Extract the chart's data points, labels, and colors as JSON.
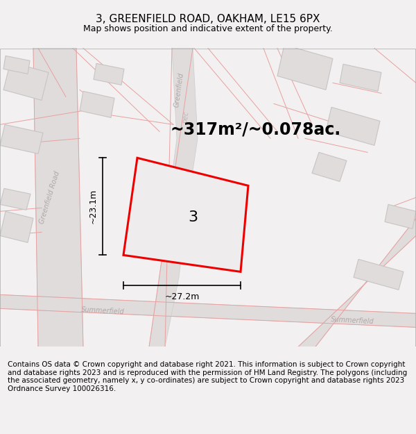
{
  "title_line1": "3, GREENFIELD ROAD, OAKHAM, LE15 6PX",
  "title_line2": "Map shows position and indicative extent of the property.",
  "area_text": "~317m²/~0.078ac.",
  "dim_height": "~23.1m",
  "dim_width": "~27.2m",
  "plot_number": "3",
  "footer_text": "Contains OS data © Crown copyright and database right 2021. This information is subject to Crown copyright and database rights 2023 and is reproduced with the permission of HM Land Registry. The polygons (including the associated geometry, namely x, y co-ordinates) are subject to Crown copyright and database rights 2023 Ordnance Survey 100026316.",
  "bg_color": "#f2f0f0",
  "map_bg": "#f2f0f0",
  "road_fill": "#e0dcdc",
  "road_edge": "#cccccc",
  "bldg_fill": "#e0dcdc",
  "bldg_edge": "#c8c4c4",
  "plot_fill": "#eeecec",
  "plot_edge": "#ee0000",
  "pink_line": "#e8a0a0",
  "dim_color": "#000000",
  "road_label_color": "#b0a8a8",
  "title_fontsize": 11,
  "subtitle_fontsize": 9,
  "area_fontsize": 17,
  "footer_fontsize": 7.5,
  "plot_label_fontsize": 16,
  "dim_fontsize": 9,
  "road_label_fontsize": 7
}
